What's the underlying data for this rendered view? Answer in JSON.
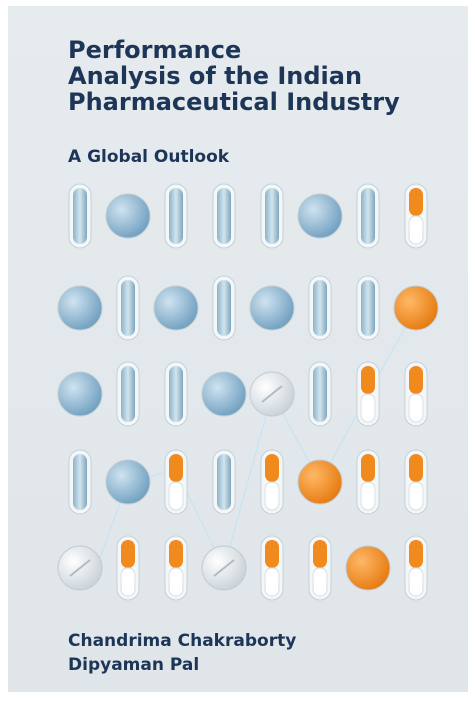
{
  "title": [
    "Performance",
    "Analysis of the Indian",
    "Pharmaceutical Industry"
  ],
  "subtitle": "A Global Outlook",
  "authors": [
    "Chandrima Chakraborty",
    "Dipyaman Pal"
  ]
}
